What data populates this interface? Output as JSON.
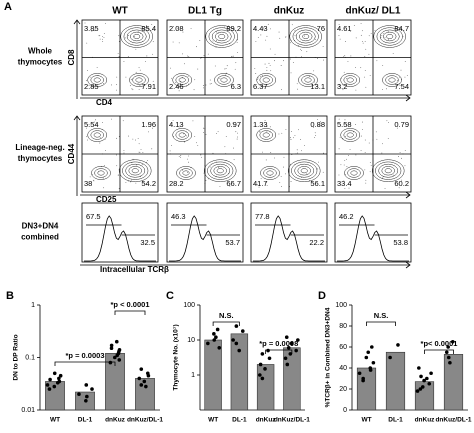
{
  "panel_a": {
    "letter": "A",
    "columns": [
      "WT",
      "DL1 Tg",
      "dnKuz",
      "dnKuz/ DL1"
    ],
    "rows": [
      {
        "label": "Whole thymocytes",
        "y_axis": "CD8",
        "x_axis": "CD4",
        "cells": [
          [
            "3.85",
            "85.4",
            "2.85",
            "7.91"
          ],
          [
            "2.08",
            "89.2",
            "2.46",
            "6.3"
          ],
          [
            "4.43",
            "76",
            "6.37",
            "13.1"
          ],
          [
            "4.61",
            "84.7",
            "3.2",
            "7.54"
          ]
        ]
      },
      {
        "label": "Lineage-neg. thymocytes",
        "y_axis": "CD44",
        "x_axis": "CD25",
        "cells": [
          [
            "5.54",
            "1.96",
            "38",
            "54.2"
          ],
          [
            "4.13",
            "0.97",
            "28.2",
            "66.7"
          ],
          [
            "1.33",
            "0.88",
            "41.7",
            "56.1"
          ],
          [
            "5.58",
            "0.79",
            "33.4",
            "60.2"
          ]
        ]
      },
      {
        "label": "DN3+DN4 combined",
        "x_axis": "Intracellular TCRβ",
        "cells": [
          [
            "67.5",
            "32.5"
          ],
          [
            "46.3",
            "53.7"
          ],
          [
            "77.8",
            "22.2"
          ],
          [
            "46.2",
            "53.8"
          ]
        ]
      }
    ]
  },
  "chart_data": [
    {
      "type": "bar",
      "letter": "B",
      "ylabel": "DN to DP Ratio",
      "log_scale": true,
      "categories": [
        "WT",
        "DL-1",
        "dnKuz",
        "dnKuz/DL-1"
      ],
      "values": [
        0.035,
        0.022,
        0.12,
        0.04
      ],
      "points": [
        [
          0.03,
          0.04,
          0.035,
          0.045,
          0.028,
          0.05,
          0.033,
          0.038,
          0.025
        ],
        [
          0.02,
          0.025,
          0.015,
          0.03,
          0.018
        ],
        [
          0.1,
          0.13,
          0.15,
          0.2,
          0.09,
          0.12,
          0.17,
          0.11,
          0.08,
          0.14
        ],
        [
          0.04,
          0.05,
          0.03,
          0.035,
          0.06,
          0.045,
          0.028
        ]
      ],
      "color": "#888888",
      "ylim": [
        0.01,
        1
      ],
      "yticks": [
        0.01,
        0.1,
        1
      ],
      "annotations": [
        "*p = 0.0003",
        "*p < 0.0001"
      ]
    },
    {
      "type": "bar",
      "letter": "C",
      "ylabel": "Thymocyte No. (x10⁷)",
      "log_scale": true,
      "categories": [
        "WT",
        "DL-1",
        "dnKuz",
        "dnKuz/DL-1"
      ],
      "values": [
        10,
        15,
        2,
        6
      ],
      "points": [
        [
          12,
          20,
          8,
          6,
          15,
          10
        ],
        [
          25,
          10,
          5,
          18,
          8
        ],
        [
          3,
          1,
          2,
          5,
          0.8,
          1.5,
          4
        ],
        [
          5,
          10,
          3,
          8,
          12,
          4,
          6,
          2
        ]
      ],
      "color": "#888888",
      "ylim": [
        0.1,
        100
      ],
      "yticks": [
        1,
        10,
        100
      ],
      "annotations": [
        "N.S.",
        "*p = 0.0008"
      ]
    },
    {
      "type": "bar",
      "letter": "D",
      "ylabel": "%TCRβ+ in Combined DN3+DN4",
      "log_scale": false,
      "categories": [
        "WT",
        "DL-1",
        "dnKuz",
        "dnKuz/DL-1"
      ],
      "values": [
        40,
        55,
        27,
        53
      ],
      "points": [
        [
          45,
          60,
          30,
          35,
          50,
          40,
          28,
          55,
          38
        ],
        [
          62,
          50
        ],
        [
          20,
          30,
          25,
          35,
          18,
          28,
          40,
          22,
          32
        ],
        [
          50,
          60,
          55,
          45,
          65
        ]
      ],
      "color": "#888888",
      "ylim": [
        0,
        100
      ],
      "yticks": [
        0,
        20,
        40,
        60,
        80,
        100
      ],
      "annotations": [
        "N.S.",
        "*p< 0.0001"
      ]
    }
  ]
}
